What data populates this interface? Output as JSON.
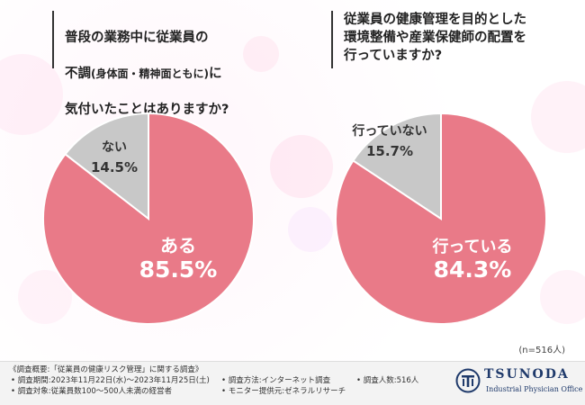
{
  "questions": {
    "left": {
      "line1": "普段の業務中に従業員の",
      "line2_prefix": "不調",
      "line2_paren": "(身体面・精神面ともに)",
      "line2_suffix": "に",
      "line3": "気付いたことはありますか?"
    },
    "right": {
      "text": "従業員の健康管理を目的とした\n環境整備や産業保健師の配置を\n行っていますか?"
    }
  },
  "chart_data": [
    {
      "type": "pie",
      "title": "普段の業務中に従業員の不調(身体面・精神面ともに)に気付いたことはありますか?",
      "labels": [
        "ある",
        "ない"
      ],
      "values": [
        85.5,
        14.5
      ],
      "value_labels": [
        "85.5%",
        "14.5%"
      ],
      "colors": [
        "#e97a88",
        "#c8c8c8"
      ]
    },
    {
      "type": "pie",
      "title": "従業員の健康管理を目的とした環境整備や産業保健師の配置を行っていますか?",
      "labels": [
        "行っている",
        "行っていない"
      ],
      "values": [
        84.3,
        15.7
      ],
      "value_labels": [
        "84.3%",
        "15.7%"
      ],
      "colors": [
        "#e97a88",
        "#c8c8c8"
      ]
    }
  ],
  "sample_note": "(n=516人)",
  "footer": {
    "title": "《調査概要:「従業員の健康リスク管理」に関する調査》",
    "period": "• 調査期間:2023年11月22日(水)〜2023年11月25日(土)",
    "target": "• 調査対象:従業員数100〜500人未満の経営者",
    "method": "• 調査方法:インターネット調査",
    "provider": "• モニター提供元:ゼネラルリサーチ",
    "count": "• 調査人数:516人"
  },
  "logo": {
    "name": "TSUNODA",
    "subtitle": "Industrial Physician Office",
    "color": "#1f3a6b"
  }
}
